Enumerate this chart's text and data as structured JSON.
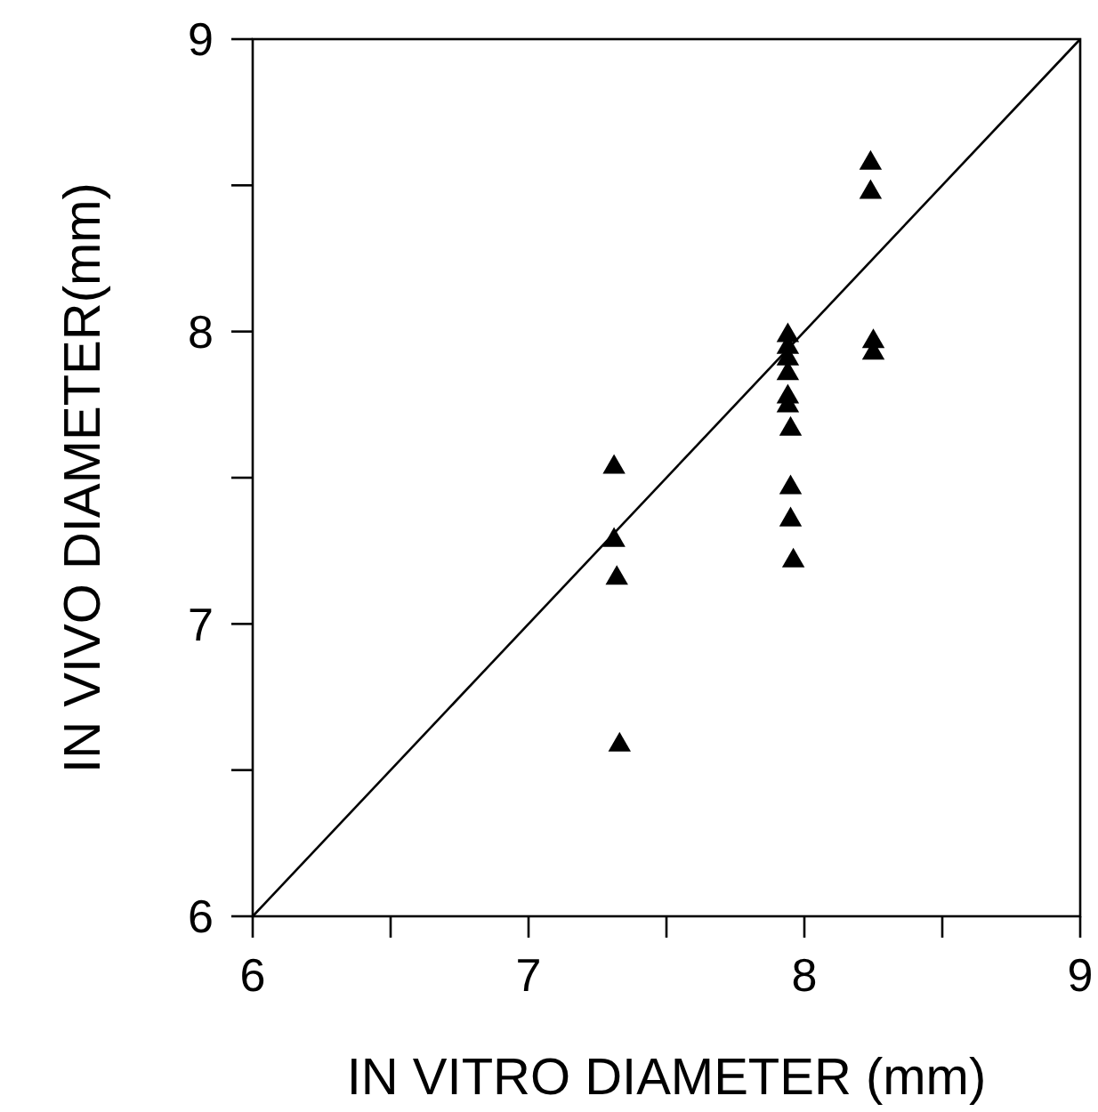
{
  "chart_data": {
    "type": "scatter",
    "xlabel": "IN VITRO DIAMETER (mm)",
    "ylabel": "IN VIVO DIAMETER(mm)",
    "xlim": [
      6,
      9
    ],
    "ylim": [
      6,
      9
    ],
    "xticks": [
      6,
      {
        "value": 6.5,
        "label": null
      },
      7,
      {
        "value": 7.5,
        "label": null
      },
      8,
      {
        "value": 8.5,
        "label": null
      },
      9
    ],
    "yticks": [
      6,
      {
        "value": 6.5,
        "label": null
      },
      7,
      {
        "value": 7.5,
        "label": null
      },
      8,
      {
        "value": 8.5,
        "label": null
      },
      9
    ],
    "grid": false,
    "marker": "triangle",
    "series": [
      {
        "color": "#000000",
        "x": [
          8.24,
          8.24,
          7.94,
          7.94,
          7.94,
          7.94,
          7.94,
          7.94,
          7.95,
          7.95,
          7.95,
          7.96,
          8.25,
          8.25,
          7.31,
          7.31,
          7.32,
          7.33
        ],
        "values": [
          8.57,
          8.47,
          7.98,
          7.94,
          7.9,
          7.85,
          7.77,
          7.74,
          7.66,
          7.46,
          7.35,
          7.21,
          7.96,
          7.92,
          7.53,
          7.28,
          7.15,
          6.58
        ]
      },
      {
        "type": "line",
        "color": "#000000",
        "marker": "none",
        "line_style": "solid",
        "x": [
          6,
          9
        ],
        "values": [
          6,
          9
        ]
      }
    ]
  }
}
